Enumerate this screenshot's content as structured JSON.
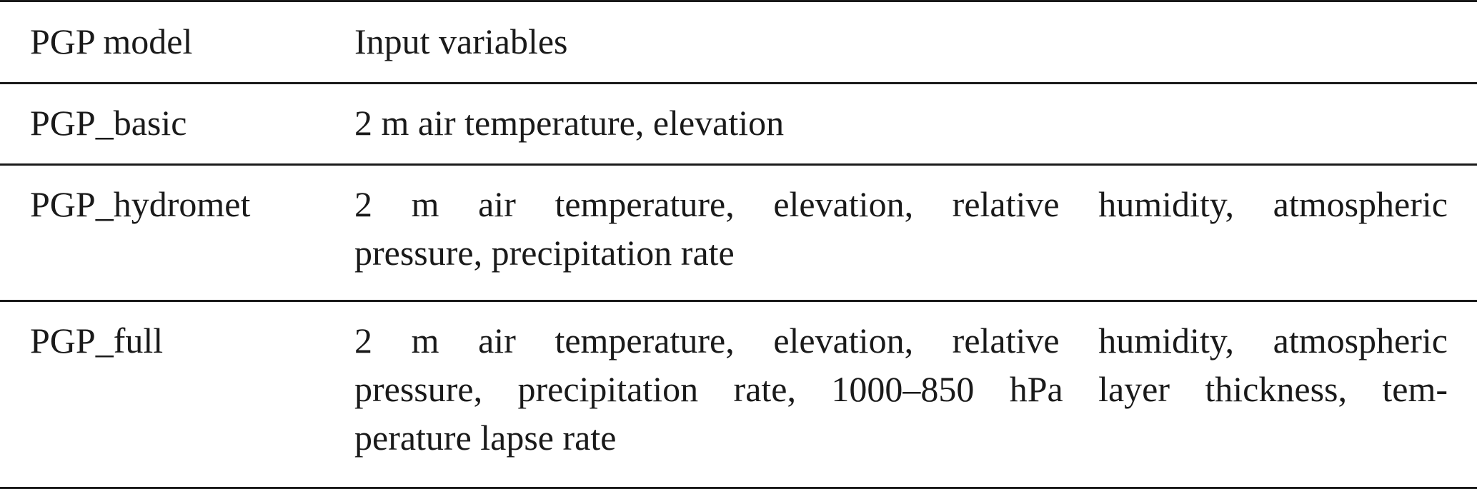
{
  "table": {
    "header": {
      "col1": "PGP model",
      "col2": "Input variables"
    },
    "rows": [
      {
        "model": "PGP_basic",
        "lines": [
          "2 m air temperature, elevation"
        ]
      },
      {
        "model": "PGP_hydromet",
        "lines": [
          "2 m air temperature, elevation, relative humidity, atmospheric",
          "pressure, precipitation rate"
        ]
      },
      {
        "model": "PGP_full",
        "lines": [
          "2 m air temperature, elevation, relative humidity, atmospheric",
          "pressure, precipitation rate, 1000–850 hPa layer thickness, tem-",
          "perature lapse rate"
        ]
      }
    ]
  }
}
